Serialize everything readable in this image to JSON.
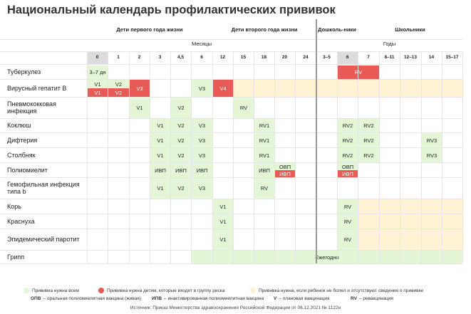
{
  "title": "Национальный календарь профилактических прививок",
  "groups": [
    {
      "id": "infant",
      "label": "Дети первого года жизни"
    },
    {
      "id": "second",
      "label": "Дети второго года жизни"
    },
    {
      "id": "preschool",
      "label": "Дошколь-ники"
    },
    {
      "id": "school",
      "label": "Школьники"
    }
  ],
  "subheaders": {
    "months": "Месяцы",
    "years": "Годы"
  },
  "columns": [
    "0",
    "1",
    "2",
    "3",
    "4,5",
    "6",
    "12",
    "15",
    "18",
    "20",
    "24",
    "3–5",
    "6",
    "7",
    "8–11",
    "12–13",
    "14",
    "15–17"
  ],
  "rows": [
    {
      "label": "Туберкулез",
      "two_lines": false,
      "cells": [
        {
          "col": 0,
          "text": "3–7 дн",
          "color": "green"
        },
        {
          "col": 12,
          "span": 2,
          "text": "RV",
          "color": "red"
        }
      ]
    },
    {
      "label": "Вирусный гепатит В",
      "two_lines": true,
      "cells": [
        {
          "col": 0,
          "text": "V1",
          "color": "green",
          "half": "top"
        },
        {
          "col": 0,
          "text": "V1",
          "color": "red",
          "half": "bottom"
        },
        {
          "col": 1,
          "text": "V2",
          "color": "green",
          "half": "top"
        },
        {
          "col": 1,
          "text": "V2",
          "color": "red",
          "half": "bottom"
        },
        {
          "col": 2,
          "text": "V3",
          "color": "red"
        },
        {
          "col": 5,
          "text": "V3",
          "color": "green"
        },
        {
          "col": 6,
          "text": "V4",
          "color": "red"
        },
        {
          "col": 7,
          "span": 11,
          "text": "",
          "color": "yellow"
        }
      ]
    },
    {
      "label": "Пневмококковая инфекция",
      "two_lines": true,
      "cells": [
        {
          "col": 2,
          "text": "V1",
          "color": "green"
        },
        {
          "col": 4,
          "text": "V2",
          "color": "green"
        },
        {
          "col": 7,
          "text": "RV",
          "color": "green"
        }
      ]
    },
    {
      "label": "Коклюш",
      "two_lines": false,
      "cells": [
        {
          "col": 3,
          "text": "V1",
          "color": "green"
        },
        {
          "col": 4,
          "text": "V2",
          "color": "green"
        },
        {
          "col": 5,
          "text": "V3",
          "color": "green"
        },
        {
          "col": 8,
          "text": "RV1",
          "color": "green"
        },
        {
          "col": 12,
          "text": "RV2",
          "color": "green"
        },
        {
          "col": 13,
          "text": "RV2",
          "color": "green"
        }
      ]
    },
    {
      "label": "Дифтерия",
      "two_lines": false,
      "cells": [
        {
          "col": 3,
          "text": "V1",
          "color": "green"
        },
        {
          "col": 4,
          "text": "V2",
          "color": "green"
        },
        {
          "col": 5,
          "text": "V3",
          "color": "green"
        },
        {
          "col": 8,
          "text": "RV1",
          "color": "green"
        },
        {
          "col": 12,
          "text": "RV2",
          "color": "green"
        },
        {
          "col": 13,
          "text": "RV2",
          "color": "green"
        },
        {
          "col": 16,
          "text": "RV3",
          "color": "green"
        }
      ]
    },
    {
      "label": "Столбняк",
      "two_lines": false,
      "cells": [
        {
          "col": 3,
          "text": "V1",
          "color": "green"
        },
        {
          "col": 4,
          "text": "V2",
          "color": "green"
        },
        {
          "col": 5,
          "text": "V3",
          "color": "green"
        },
        {
          "col": 8,
          "text": "RV1",
          "color": "green"
        },
        {
          "col": 12,
          "text": "RV2",
          "color": "green"
        },
        {
          "col": 13,
          "text": "RV2",
          "color": "green"
        },
        {
          "col": 16,
          "text": "RV3",
          "color": "green"
        }
      ]
    },
    {
      "label": "Полиомиелит",
      "two_lines": false,
      "cells": [
        {
          "col": 3,
          "text": "ИВП",
          "color": "green"
        },
        {
          "col": 4,
          "text": "ИВП",
          "color": "green"
        },
        {
          "col": 5,
          "text": "ИВП",
          "color": "green"
        },
        {
          "col": 8,
          "text": "ИВП",
          "color": "green"
        },
        {
          "col": 9,
          "text": "ОВП",
          "color": "green",
          "half": "top"
        },
        {
          "col": 9,
          "text": "ИВП",
          "color": "red",
          "half": "bottom"
        },
        {
          "col": 12,
          "text": "ОВП",
          "color": "green",
          "half": "top"
        },
        {
          "col": 12,
          "text": "ИВП",
          "color": "red",
          "half": "bottom"
        }
      ]
    },
    {
      "label": "Гемофильная инфекция типа b",
      "two_lines": true,
      "cells": [
        {
          "col": 3,
          "text": "V1",
          "color": "green"
        },
        {
          "col": 4,
          "text": "V2",
          "color": "green"
        },
        {
          "col": 5,
          "text": "V3",
          "color": "green"
        },
        {
          "col": 8,
          "text": "RV",
          "color": "green"
        }
      ]
    },
    {
      "label": "Корь",
      "two_lines": false,
      "cells": [
        {
          "col": 6,
          "text": "V1",
          "color": "green"
        },
        {
          "col": 12,
          "text": "RV",
          "color": "green"
        },
        {
          "col": 13,
          "span": 5,
          "text": "",
          "color": "yellow"
        }
      ]
    },
    {
      "label": "Краснуха",
      "two_lines": false,
      "cells": [
        {
          "col": 6,
          "text": "V1",
          "color": "green"
        },
        {
          "col": 12,
          "text": "RV",
          "color": "green"
        },
        {
          "col": 13,
          "span": 5,
          "text": "",
          "color": "yellow"
        }
      ]
    },
    {
      "label": "Эпидемический паротит",
      "two_lines": true,
      "cells": [
        {
          "col": 6,
          "text": "V1",
          "color": "green"
        },
        {
          "col": 12,
          "text": "RV",
          "color": "green"
        },
        {
          "col": 13,
          "span": 5,
          "text": "",
          "color": "yellow"
        }
      ]
    },
    {
      "label": "Грипп",
      "two_lines": false,
      "cells": [
        {
          "col": 5,
          "span": 13,
          "text": "Ежегодно",
          "color": "green"
        }
      ]
    }
  ],
  "legend": {
    "items": [
      {
        "color": "#e4f6d6",
        "text": "Прививка нужна всем"
      },
      {
        "color": "#e85a56",
        "text": "Прививка нужна детям, которые входят в группу риска"
      },
      {
        "color": "#fff3d3",
        "text": "Прививка нужна, если ребенок не болел и отсутствуют сведения о прививке"
      }
    ],
    "abbr": [
      {
        "key": "ОПВ",
        "text": "– оральная полиомиелитная вакцина (живая)"
      },
      {
        "key": "ИПВ",
        "text": "– инактивированная полиомиелитная вакцина"
      },
      {
        "key": "V",
        "text": "– плановая вакцинация"
      },
      {
        "key": "RV",
        "text": "– ревакцинация"
      }
    ]
  },
  "source": "Источник: Приказ Министерства здравоохранения Российской Федерации от 06.12.2021 № 1122н",
  "colors": {
    "green": "#e4f6d6",
    "red": "#e85a56",
    "yellow": "#fff3d3",
    "header_highlight": "#dcdcdc"
  }
}
